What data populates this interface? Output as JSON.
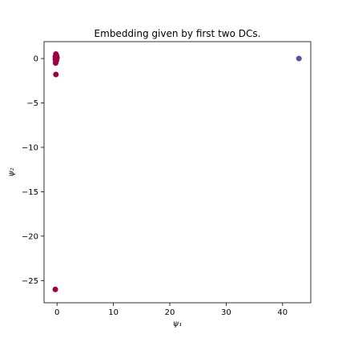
{
  "chart_data": {
    "type": "scatter",
    "title": "Embedding given by first two DCs.",
    "xlabel": "ψ₁",
    "ylabel": "ψ₂",
    "xlim": [
      -2.3,
      45.0
    ],
    "ylim": [
      -27.5,
      1.9
    ],
    "xticks": [
      0,
      10,
      20,
      30,
      40
    ],
    "yticks": [
      0,
      -5,
      -10,
      -15,
      -20,
      -25
    ],
    "grid": false,
    "points": [
      {
        "x": 42.9,
        "y": 0.0,
        "color": "#5e4fa2"
      },
      {
        "x": -0.2,
        "y": 0.5,
        "color": "#9e0142"
      },
      {
        "x": -0.1,
        "y": 0.35,
        "color": "#9e0142"
      },
      {
        "x": -0.3,
        "y": 0.2,
        "color": "#9e0142"
      },
      {
        "x": 0.0,
        "y": 0.1,
        "color": "#9e0142"
      },
      {
        "x": -0.2,
        "y": 0.0,
        "color": "#9e0142"
      },
      {
        "x": -0.3,
        "y": -0.1,
        "color": "#9e0142"
      },
      {
        "x": -0.1,
        "y": -0.2,
        "color": "#9e0142"
      },
      {
        "x": -0.2,
        "y": -0.35,
        "color": "#9e0142"
      },
      {
        "x": -0.25,
        "y": -0.5,
        "color": "#9e0142"
      },
      {
        "x": -0.2,
        "y": -1.8,
        "color": "#9e0142"
      },
      {
        "x": -0.3,
        "y": -26.0,
        "color": "#9e0142"
      }
    ]
  }
}
